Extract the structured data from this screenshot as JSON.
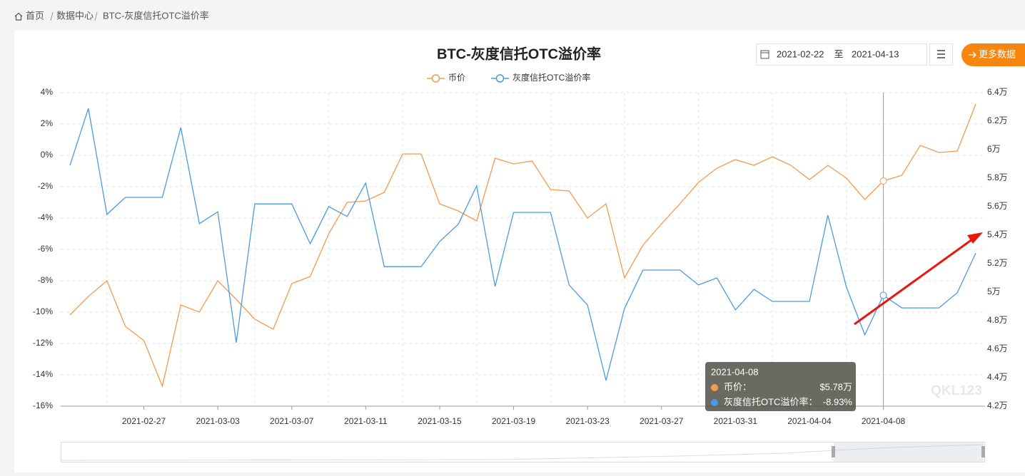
{
  "breadcrumb": [
    "首页",
    "数据中心",
    "BTC-灰度信托OTC溢价率"
  ],
  "date_range": {
    "start": "2021-02-22",
    "separator": "至",
    "end": "2021-04-13"
  },
  "more_button": "更多数据",
  "watermark": "QKL123",
  "tooltip": {
    "date": "2021-04-08",
    "items": [
      {
        "name": "币价：",
        "value": "$5.78万"
      },
      {
        "name": "灰度信托OTC溢价率：",
        "value": "-8.93%"
      }
    ]
  },
  "chart_data": {
    "type": "line",
    "title": "BTC-灰度信托OTC溢价率",
    "categories": [
      null,
      null,
      null,
      null,
      "2021-02-27",
      null,
      null,
      null,
      "2021-03-03",
      null,
      null,
      null,
      "2021-03-07",
      null,
      null,
      null,
      "2021-03-11",
      null,
      null,
      null,
      "2021-03-15",
      null,
      null,
      null,
      "2021-03-19",
      null,
      null,
      null,
      "2021-03-23",
      null,
      null,
      null,
      "2021-03-27",
      null,
      null,
      null,
      "2021-03-31",
      null,
      null,
      null,
      "2021-04-04",
      null,
      null,
      null,
      "2021-04-08",
      null,
      null,
      null,
      null,
      null
    ],
    "series": [
      {
        "name": "币价",
        "color": "#f39a4f",
        "axis": "y2",
        "values": [
          4.84,
          4.97,
          5.08,
          4.76,
          4.66,
          4.34,
          4.91,
          4.86,
          5.08,
          4.95,
          4.81,
          4.74,
          5.06,
          5.11,
          5.41,
          5.63,
          5.64,
          5.7,
          5.97,
          5.97,
          5.62,
          5.57,
          5.5,
          5.94,
          5.9,
          5.92,
          5.72,
          5.71,
          5.52,
          5.62,
          5.1,
          5.33,
          5.48,
          5.62,
          5.77,
          5.87,
          5.93,
          5.89,
          5.95,
          5.89,
          5.79,
          5.89,
          5.8,
          5.65,
          5.78,
          5.82,
          6.03,
          5.98,
          5.99,
          6.32
        ]
      },
      {
        "name": "灰度信托OTC溢价率",
        "color": "#4b9be0",
        "values": [
          -0.64,
          3.0,
          -3.77,
          -2.68,
          -2.68,
          -2.68,
          1.77,
          -4.36,
          -3.6,
          -11.95,
          -3.1,
          -3.1,
          -3.1,
          -5.64,
          -3.27,
          -3.9,
          -1.77,
          -7.1,
          -7.1,
          -7.1,
          -5.5,
          -4.4,
          -1.95,
          -8.36,
          -3.64,
          -3.64,
          -3.64,
          -8.27,
          -9.55,
          -14.36,
          -9.77,
          -7.32,
          -7.32,
          -7.32,
          -8.27,
          -7.82,
          -9.86,
          -8.55,
          -9.32,
          -9.32,
          -9.32,
          -3.82,
          -8.41,
          -11.45,
          -8.93,
          -9.73,
          -9.73,
          -9.73,
          -8.77,
          -6.23
        ]
      }
    ],
    "ylim": [
      -16,
      4
    ],
    "yticks": [
      {
        "value": 4,
        "label": "4%"
      },
      {
        "value": 2,
        "label": "2%"
      },
      {
        "value": 0,
        "label": "0%"
      },
      {
        "value": -2,
        "label": "-2%"
      },
      {
        "value": -4,
        "label": "-4%"
      },
      {
        "value": -6,
        "label": "-6%"
      },
      {
        "value": -8,
        "label": "-8%"
      },
      {
        "value": -10,
        "label": "-10%"
      },
      {
        "value": -12,
        "label": "-12%"
      },
      {
        "value": -14,
        "label": "-14%"
      },
      {
        "value": -16,
        "label": "-16%"
      }
    ],
    "y2lim": [
      4.2,
      6.4
    ],
    "y2ticks": [
      {
        "value": 6.4,
        "label": "6.4万"
      },
      {
        "value": 6.2,
        "label": "6.2万"
      },
      {
        "value": 6,
        "label": "6万"
      },
      {
        "value": 5.8,
        "label": "5.8万"
      },
      {
        "value": 5.6,
        "label": "5.6万"
      },
      {
        "value": 5.4,
        "label": "5.4万"
      },
      {
        "value": 5.2,
        "label": "5.2万"
      },
      {
        "value": 5,
        "label": "5万"
      },
      {
        "value": 4.8,
        "label": "4.8万"
      },
      {
        "value": 4.6,
        "label": "4.6万"
      },
      {
        "value": 4.4,
        "label": "4.4万"
      },
      {
        "value": 4.2,
        "label": "4.2万"
      }
    ],
    "grid": true,
    "legend": "top"
  }
}
